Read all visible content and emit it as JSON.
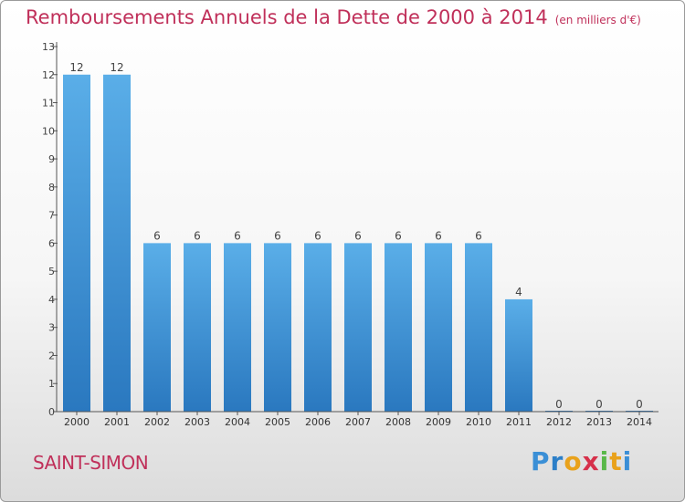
{
  "title": "Remboursements Annuels de la Dette de 2000 à 2014",
  "subtitle": "(en milliers d'€)",
  "city": "SAINT-SIMON",
  "logo": {
    "letters": [
      "P",
      "r",
      "o",
      "x",
      "i",
      "t",
      "i"
    ]
  },
  "chart_data": {
    "type": "bar",
    "title": "Remboursements Annuels de la Dette de 2000 à 2014",
    "xlabel": "",
    "ylabel": "",
    "ylim": [
      0,
      13
    ],
    "yticks": [
      0,
      1,
      2,
      3,
      4,
      5,
      6,
      7,
      8,
      9,
      10,
      11,
      12,
      13
    ],
    "categories": [
      "2000",
      "2001",
      "2002",
      "2003",
      "2004",
      "2005",
      "2006",
      "2007",
      "2008",
      "2009",
      "2010",
      "2011",
      "2012",
      "2013",
      "2014"
    ],
    "values": [
      12,
      12,
      6,
      6,
      6,
      6,
      6,
      6,
      6,
      6,
      6,
      4,
      0,
      0,
      0
    ],
    "bar_color_top": "#5aaee8",
    "bar_color_bottom": "#2a78bf"
  }
}
